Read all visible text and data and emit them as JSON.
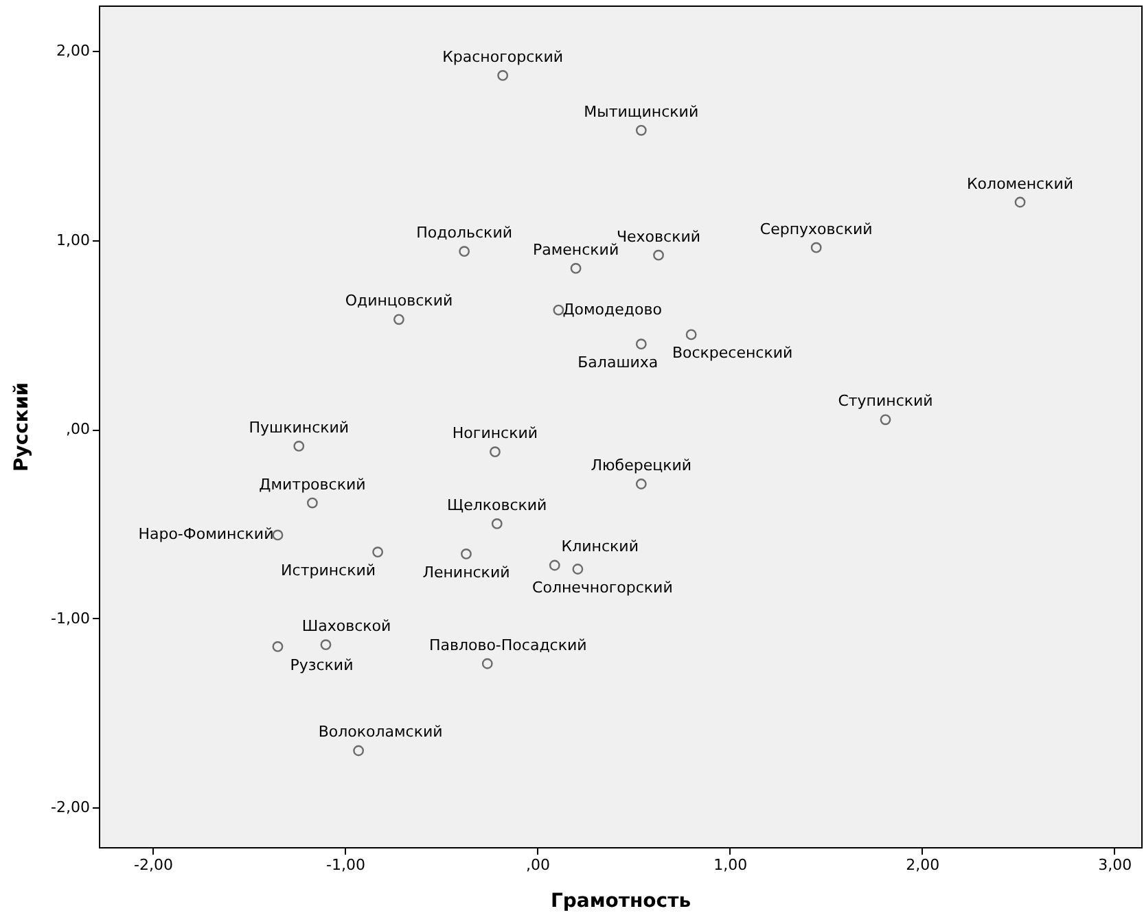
{
  "chart_data": {
    "type": "scatter",
    "xlabel": "Грамотность",
    "ylabel": "Русский",
    "xlim": [
      -2.28,
      3.14
    ],
    "ylim": [
      -2.21,
      2.24
    ],
    "xticks": [
      {
        "value": -2,
        "label": "-2,00"
      },
      {
        "value": -1,
        "label": "-1,00"
      },
      {
        "value": 0,
        "label": ",00"
      },
      {
        "value": 1,
        "label": "1,00"
      },
      {
        "value": 2,
        "label": "2,00"
      },
      {
        "value": 3,
        "label": "3,00"
      }
    ],
    "yticks": [
      {
        "value": -2,
        "label": "-2,00"
      },
      {
        "value": -1,
        "label": "-1,00"
      },
      {
        "value": 0,
        "label": ",00"
      },
      {
        "value": 1,
        "label": "1,00"
      },
      {
        "value": 2,
        "label": "2,00"
      }
    ],
    "grid": false,
    "marker": "circle",
    "series": [
      {
        "color": "#333333",
        "x": [
          -0.18,
          0.54,
          2.51,
          -0.38,
          0.63,
          1.45,
          0.2,
          -0.72,
          0.11,
          0.54,
          0.8,
          1.81,
          -1.24,
          -0.22,
          0.54,
          -1.17,
          -0.21,
          -1.35,
          -0.83,
          -0.37,
          0.09,
          0.21,
          -1.1,
          -1.35,
          -0.26,
          -0.93
        ],
        "values": [
          1.87,
          1.58,
          1.2,
          0.94,
          0.92,
          0.96,
          0.85,
          0.58,
          0.63,
          0.45,
          0.5,
          0.05,
          -0.09,
          -0.12,
          -0.29,
          -0.39,
          -0.5,
          -0.56,
          -0.65,
          -0.66,
          -0.72,
          -0.74,
          -1.14,
          -1.15,
          -1.24,
          -1.7
        ],
        "value_labels": [
          "Красногорский",
          "Мытищинский",
          "Коломенский",
          "Подольский",
          "Чеховский",
          "Серпуховский",
          "Раменский",
          "Одинцовский",
          "Домодедово",
          "Балашиха",
          "Воскресенский",
          "Ступинский",
          "Пушкинский",
          "Ногинский",
          "Люберецкий",
          "Дмитровский",
          "Щелковский",
          "Наро-Фоминский",
          "Истринский",
          "Ленинский",
          "Клинский",
          "Солнечногорский",
          "Шаховской",
          "Рузский",
          "Павлово-Посадский",
          "Волоколамский"
        ]
      }
    ]
  }
}
